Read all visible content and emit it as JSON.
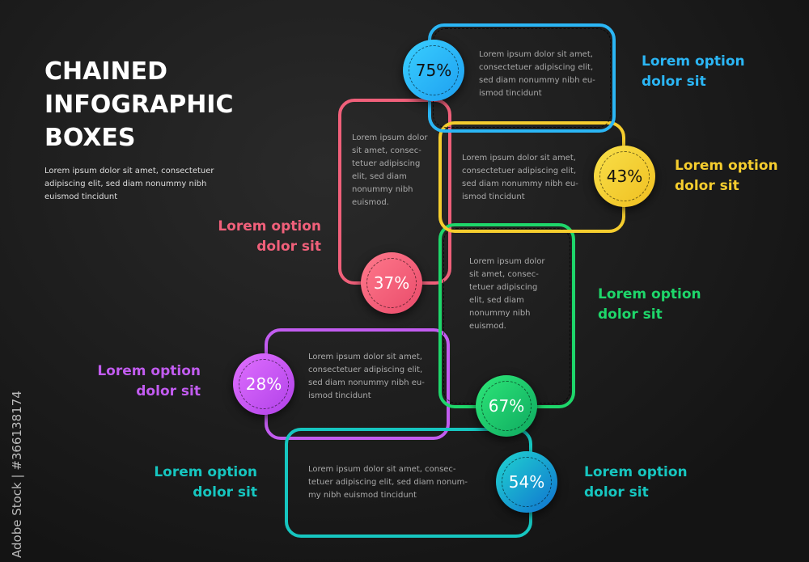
{
  "title": "CHAINED INFOGRAPHIC BOXES",
  "intro": "Lorem ipsum dolor sit amet, consectetuer adipiscing elit, sed diam nonummy nibh euismod tincidunt",
  "items": [
    {
      "percent": "75%",
      "label": "Lorem option dolor sit",
      "text": "Lorem ipsum dolor sit amet, consectetuer adipiscing elit, sed diam nonummy nibh eu-ismod tincidunt",
      "color": "#2bb6f5"
    },
    {
      "percent": "43%",
      "label": "Lorem option dolor sit",
      "text": "Lorem ipsum dolor sit amet, consectetuer adipiscing elit, sed diam nonummy nibh eu-ismod tincidunt",
      "color": "#f5cd2e"
    },
    {
      "percent": "37%",
      "label": "Lorem option dolor sit",
      "text": "Lorem ipsum dolor sit amet, consec-tetuer adipiscing elit, sed diam nonummy nibh euismod.",
      "color": "#f0607a"
    },
    {
      "percent": "67%",
      "label": "Lorem option dolor sit",
      "text": "Lorem ipsum dolor sit amet, consec-tetuer adipiscing elit, sed diam nonummy nibh euismod.",
      "color": "#1ed66a"
    },
    {
      "percent": "28%",
      "label": "Lorem option dolor sit",
      "text": "Lorem ipsum dolor sit amet, consectetuer adipiscing elit, sed diam nonummy nibh eu-ismod tincidunt",
      "color": "#c25cf0"
    },
    {
      "percent": "54%",
      "label": "Lorem option dolor sit",
      "label_left": "Lorem option dolor sit",
      "text": "Lorem ipsum dolor sit amet, consec-tetuer adipiscing elit, sed diam nonum-my nibh euismod tincidunt",
      "color": "#16c6c0"
    }
  ],
  "watermark": "Adobe Stock | #366138174"
}
